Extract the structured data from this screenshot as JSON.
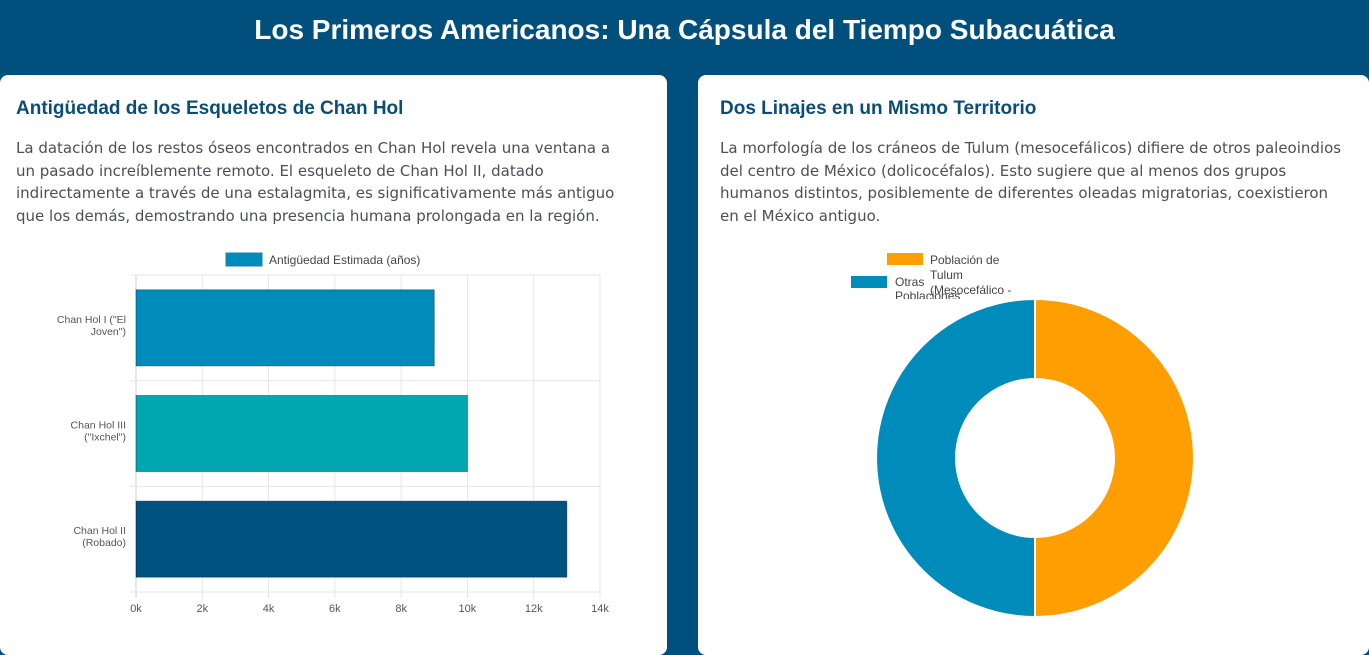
{
  "page": {
    "title": "Los Primeros Americanos: Una Cápsula del Tiempo Subacuática"
  },
  "left_card": {
    "heading": "Antigüedad de los Esqueletos de Chan Hol",
    "body": "La datación de los restos óseos encontrados en Chan Hol revela una ventana a un pasado increíblemente remoto. El esqueleto de Chan Hol II, datado indirectamente a través de una estalagmita, es significativamente más antiguo que los demás, demostrando una presencia humana prolongada en la región."
  },
  "right_card": {
    "heading": "Dos Linajes en un Mismo Territorio",
    "body": "La morfología de los cráneos de Tulum (mesocefálicos) difiere de otros paleoindios del centro de México (dolicocéfalos). Esto sugiere que al menos dos grupos humanos distintos, posiblemente de diferentes oleadas migratorias, coexistieron en el México antiguo."
  },
  "chart_data": [
    {
      "type": "bar",
      "orientation": "horizontal",
      "categories": [
        [
          "Chan Hol I (\"El",
          "Joven\")"
        ],
        [
          "Chan Hol III",
          "(\"Ixchel\")"
        ],
        [
          "Chan Hol II",
          "(Robado)"
        ]
      ],
      "series": [
        {
          "name": "Antigüedad Estimada (años)",
          "values": [
            9000,
            10000,
            13000
          ]
        }
      ],
      "bar_colors": [
        "#008cba",
        "#00a6b0",
        "#005380"
      ],
      "legend_color": "#008cba",
      "xlim": [
        0,
        14000
      ],
      "x_ticks": [
        "0k",
        "2k",
        "4k",
        "6k",
        "8k",
        "10k",
        "12k",
        "14k"
      ],
      "grid": true,
      "legend_position": "top"
    },
    {
      "type": "pie",
      "variant": "doughnut",
      "legend": [
        [
          "Población de",
          "Tulum",
          "(Mesocefálico -"
        ],
        [
          "Otras",
          "Poblaciones"
        ]
      ],
      "values": [
        50,
        50
      ],
      "colors": [
        "#ff9e00",
        "#008cba"
      ],
      "legend_position": "top"
    }
  ]
}
